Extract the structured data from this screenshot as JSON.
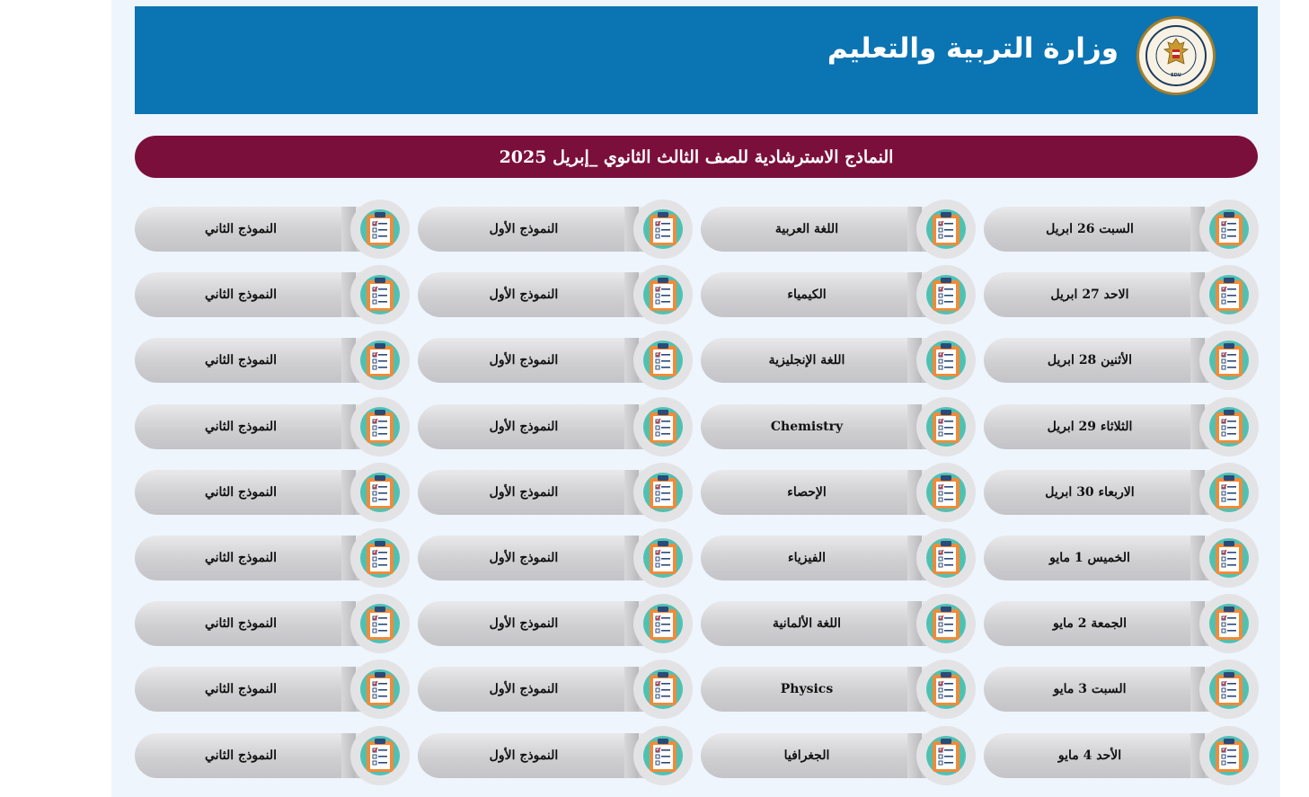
{
  "header": {
    "title": "وزارة التربية والتعليم",
    "logo_text": "MINISTRY OF EDUCATION AND TECHNICAL EDUCATION"
  },
  "banner": {
    "title": "النماذج الاسترشادية للصف الثالث الثانوي _إبريل 2025"
  },
  "colors": {
    "header_bg": "#0b74b3",
    "banner_bg": "#7b0f3c",
    "page_bg": "#eef5fd",
    "icon_circle": "#4fc1b3",
    "clipboard": "#ef8b3a"
  },
  "icon_name": "checklist-clipboard-icon",
  "rows": [
    {
      "date": "السبت 26 ابريل",
      "subject": "اللغة العربية",
      "model1": "النموذج الأول",
      "model2": "النموذج الثاني"
    },
    {
      "date": "الاحد 27 ابريل",
      "subject": "الكيمياء",
      "model1": "النموذج الأول",
      "model2": "النموذج الثاني"
    },
    {
      "date": "الأثنين   28 ابريل",
      "subject": "اللغة الإنجليزية",
      "model1": "النموذج الأول",
      "model2": "النموذج الثاني"
    },
    {
      "date": "الثلاثاء   29 ابريل",
      "subject": "Chemistry",
      "model1": "النموذج الأول",
      "model2": "النموذج الثاني"
    },
    {
      "date": "الاربعاء 30 ابريل",
      "subject": "الإحصاء",
      "model1": "النموذج الأول",
      "model2": "النموذج الثاني"
    },
    {
      "date": "الخميس 1 مايو",
      "subject": "الفيزياء",
      "model1": "النموذج الأول",
      "model2": "النموذج الثاني"
    },
    {
      "date": "الجمعة 2 مايو",
      "subject": "اللغة الألمانية",
      "model1": "النموذج الأول",
      "model2": "النموذج الثاني"
    },
    {
      "date": "السبت 3 مايو",
      "subject": "Physics",
      "model1": "النموذج الأول",
      "model2": "النموذج الثاني"
    },
    {
      "date": "الأحد 4 مايو",
      "subject": "الجغرافيا",
      "model1": "النموذج الأول",
      "model2": "النموذج الثاني"
    }
  ]
}
